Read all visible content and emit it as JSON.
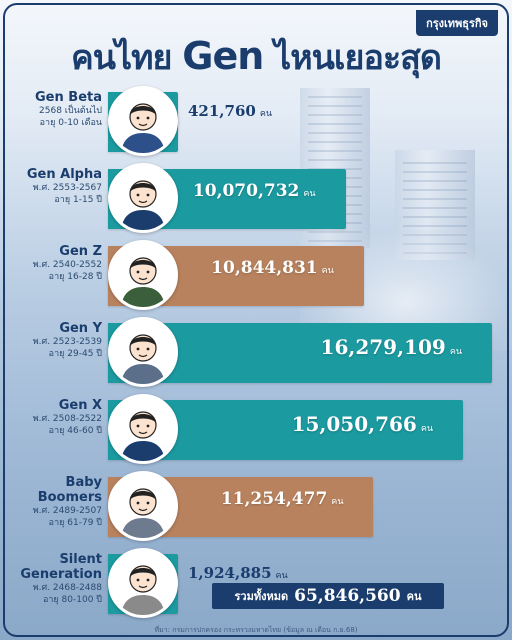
{
  "brand": "กรุงเทพธุรกิจ",
  "title_prefix": "คนไทย",
  "title_gen": "Gen",
  "title_suffix": "ไหนเยอะสุด",
  "unit": "คน",
  "total_label": "รวมทั้งหมด",
  "total_value": "65,846,560",
  "source": "ที่มา: กรมการปกครอง กระทรวงมหาดไทย (ข้อมูล ณ เดือน ก.ย.68)",
  "colors": {
    "teal": "#1b9aa0",
    "brown": "#b8825e",
    "navy": "#1b3d6d"
  },
  "chart_data": {
    "type": "bar",
    "orientation": "horizontal",
    "categories": [
      "Gen Beta",
      "Gen Alpha",
      "Gen Z",
      "Gen Y",
      "Gen X",
      "Baby Boomers",
      "Silent Generation"
    ],
    "values": [
      421760,
      10070732,
      10844831,
      16279109,
      15050766,
      11254477,
      1924885
    ],
    "value_labels": [
      "421,760",
      "10,070,732",
      "10,844,831",
      "16,279,109",
      "15,050,766",
      "11,254,477",
      "1,924,885"
    ],
    "subtitles": [
      [
        "2568 เป็นต้นไป",
        "อายุ 0-10 เดือน"
      ],
      [
        "พ.ศ. 2553-2567",
        "อายุ 1-15 ปี"
      ],
      [
        "พ.ศ. 2540-2552",
        "อายุ 16-28 ปี"
      ],
      [
        "พ.ศ. 2523-2539",
        "อายุ 29-45 ปี"
      ],
      [
        "พ.ศ. 2508-2522",
        "อายุ 46-60 ปี"
      ],
      [
        "พ.ศ. 2489-2507",
        "อายุ 61-79 ปี"
      ],
      [
        "พ.ศ. 2468-2488",
        "อายุ 80-100 ปี"
      ]
    ],
    "bar_colors": [
      "#1b9aa0",
      "#1b9aa0",
      "#b8825e",
      "#1b9aa0",
      "#1b9aa0",
      "#b8825e",
      "#1b9aa0"
    ],
    "title": "คนไทย Gen ไหนเยอะสุด",
    "xlabel": "",
    "ylabel": ""
  }
}
